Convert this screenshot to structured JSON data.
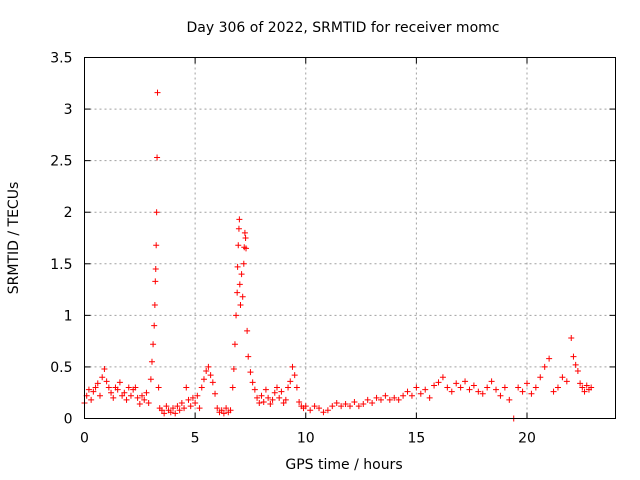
{
  "chart_data": {
    "type": "scatter",
    "title": "Day 306 of 2022, SRMTID for receiver momc",
    "xlabel": "GPS time / hours",
    "ylabel": "SRMTID / TECUs",
    "xlim": [
      0,
      24
    ],
    "ylim": [
      0,
      3.5
    ],
    "xticks": [
      0,
      5,
      10,
      15,
      20
    ],
    "xtick_labels": [
      "0",
      "5",
      "10",
      "15",
      "20"
    ],
    "yticks": [
      0,
      0.5,
      1,
      1.5,
      2,
      2.5,
      3,
      3.5
    ],
    "ytick_labels": [
      "0",
      "0.5",
      "1",
      "1.5",
      "2",
      "2.5",
      "3",
      "3.5"
    ],
    "grid": true,
    "marker": "+",
    "color": "#ff0000",
    "series": [
      {
        "name": "SRMTID",
        "points": [
          [
            0.0,
            0.15
          ],
          [
            0.1,
            0.22
          ],
          [
            0.2,
            0.28
          ],
          [
            0.3,
            0.18
          ],
          [
            0.4,
            0.26
          ],
          [
            0.5,
            0.3
          ],
          [
            0.6,
            0.34
          ],
          [
            0.7,
            0.22
          ],
          [
            0.8,
            0.4
          ],
          [
            0.9,
            0.48
          ],
          [
            1.0,
            0.36
          ],
          [
            1.1,
            0.3
          ],
          [
            1.2,
            0.25
          ],
          [
            1.3,
            0.2
          ],
          [
            1.4,
            0.3
          ],
          [
            1.5,
            0.28
          ],
          [
            1.6,
            0.35
          ],
          [
            1.7,
            0.22
          ],
          [
            1.8,
            0.25
          ],
          [
            1.9,
            0.18
          ],
          [
            2.0,
            0.3
          ],
          [
            2.1,
            0.22
          ],
          [
            2.2,
            0.28
          ],
          [
            2.3,
            0.3
          ],
          [
            2.4,
            0.2
          ],
          [
            2.5,
            0.14
          ],
          [
            2.6,
            0.22
          ],
          [
            2.7,
            0.18
          ],
          [
            2.8,
            0.25
          ],
          [
            2.9,
            0.15
          ],
          [
            3.0,
            0.38
          ],
          [
            3.05,
            0.55
          ],
          [
            3.1,
            0.72
          ],
          [
            3.15,
            0.9
          ],
          [
            3.18,
            1.1
          ],
          [
            3.2,
            1.33
          ],
          [
            3.22,
            1.45
          ],
          [
            3.24,
            1.68
          ],
          [
            3.26,
            2.0
          ],
          [
            3.28,
            2.53
          ],
          [
            3.3,
            3.16
          ],
          [
            3.35,
            0.3
          ],
          [
            3.4,
            0.1
          ],
          [
            3.5,
            0.08
          ],
          [
            3.6,
            0.05
          ],
          [
            3.7,
            0.12
          ],
          [
            3.8,
            0.08
          ],
          [
            3.9,
            0.06
          ],
          [
            4.0,
            0.1
          ],
          [
            4.1,
            0.05
          ],
          [
            4.2,
            0.12
          ],
          [
            4.3,
            0.08
          ],
          [
            4.4,
            0.15
          ],
          [
            4.5,
            0.1
          ],
          [
            4.6,
            0.3
          ],
          [
            4.7,
            0.18
          ],
          [
            4.8,
            0.12
          ],
          [
            4.9,
            0.2
          ],
          [
            5.0,
            0.15
          ],
          [
            5.1,
            0.22
          ],
          [
            5.2,
            0.1
          ],
          [
            5.3,
            0.3
          ],
          [
            5.4,
            0.38
          ],
          [
            5.5,
            0.46
          ],
          [
            5.6,
            0.5
          ],
          [
            5.7,
            0.42
          ],
          [
            5.8,
            0.35
          ],
          [
            5.9,
            0.24
          ],
          [
            6.0,
            0.1
          ],
          [
            6.1,
            0.06
          ],
          [
            6.2,
            0.08
          ],
          [
            6.3,
            0.05
          ],
          [
            6.4,
            0.1
          ],
          [
            6.5,
            0.06
          ],
          [
            6.6,
            0.08
          ],
          [
            6.7,
            0.3
          ],
          [
            6.75,
            0.48
          ],
          [
            6.8,
            0.72
          ],
          [
            6.85,
            1.0
          ],
          [
            6.9,
            1.22
          ],
          [
            6.92,
            1.47
          ],
          [
            6.95,
            1.68
          ],
          [
            6.98,
            1.84
          ],
          [
            7.0,
            1.93
          ],
          [
            7.02,
            1.3
          ],
          [
            7.05,
            1.1
          ],
          [
            7.1,
            1.4
          ],
          [
            7.15,
            1.18
          ],
          [
            7.2,
            1.5
          ],
          [
            7.22,
            1.66
          ],
          [
            7.25,
            1.8
          ],
          [
            7.28,
            1.75
          ],
          [
            7.3,
            1.65
          ],
          [
            7.35,
            0.85
          ],
          [
            7.4,
            0.6
          ],
          [
            7.5,
            0.45
          ],
          [
            7.6,
            0.35
          ],
          [
            7.7,
            0.28
          ],
          [
            7.8,
            0.2
          ],
          [
            7.9,
            0.15
          ],
          [
            8.0,
            0.22
          ],
          [
            8.1,
            0.16
          ],
          [
            8.2,
            0.28
          ],
          [
            8.3,
            0.2
          ],
          [
            8.4,
            0.14
          ],
          [
            8.5,
            0.18
          ],
          [
            8.6,
            0.25
          ],
          [
            8.7,
            0.3
          ],
          [
            8.8,
            0.2
          ],
          [
            8.9,
            0.26
          ],
          [
            9.0,
            0.15
          ],
          [
            9.1,
            0.18
          ],
          [
            9.2,
            0.3
          ],
          [
            9.3,
            0.36
          ],
          [
            9.4,
            0.5
          ],
          [
            9.5,
            0.42
          ],
          [
            9.6,
            0.3
          ],
          [
            9.7,
            0.16
          ],
          [
            9.8,
            0.12
          ],
          [
            9.9,
            0.1
          ],
          [
            10.0,
            0.12
          ],
          [
            10.2,
            0.08
          ],
          [
            10.4,
            0.12
          ],
          [
            10.6,
            0.1
          ],
          [
            10.8,
            0.06
          ],
          [
            11.0,
            0.08
          ],
          [
            11.2,
            0.12
          ],
          [
            11.4,
            0.15
          ],
          [
            11.6,
            0.12
          ],
          [
            11.8,
            0.14
          ],
          [
            12.0,
            0.12
          ],
          [
            12.2,
            0.16
          ],
          [
            12.4,
            0.12
          ],
          [
            12.6,
            0.14
          ],
          [
            12.8,
            0.18
          ],
          [
            13.0,
            0.15
          ],
          [
            13.2,
            0.2
          ],
          [
            13.4,
            0.18
          ],
          [
            13.6,
            0.22
          ],
          [
            13.8,
            0.18
          ],
          [
            14.0,
            0.2
          ],
          [
            14.2,
            0.18
          ],
          [
            14.4,
            0.22
          ],
          [
            14.6,
            0.26
          ],
          [
            14.8,
            0.22
          ],
          [
            15.0,
            0.3
          ],
          [
            15.2,
            0.24
          ],
          [
            15.4,
            0.28
          ],
          [
            15.6,
            0.2
          ],
          [
            15.8,
            0.32
          ],
          [
            16.0,
            0.35
          ],
          [
            16.2,
            0.4
          ],
          [
            16.4,
            0.3
          ],
          [
            16.6,
            0.26
          ],
          [
            16.8,
            0.34
          ],
          [
            17.0,
            0.3
          ],
          [
            17.2,
            0.36
          ],
          [
            17.4,
            0.28
          ],
          [
            17.6,
            0.32
          ],
          [
            17.8,
            0.26
          ],
          [
            18.0,
            0.24
          ],
          [
            18.2,
            0.3
          ],
          [
            18.4,
            0.36
          ],
          [
            18.6,
            0.28
          ],
          [
            18.8,
            0.22
          ],
          [
            19.0,
            0.3
          ],
          [
            19.2,
            0.18
          ],
          [
            19.4,
            0.0
          ],
          [
            19.6,
            0.3
          ],
          [
            19.8,
            0.26
          ],
          [
            20.0,
            0.34
          ],
          [
            20.2,
            0.24
          ],
          [
            20.4,
            0.3
          ],
          [
            20.6,
            0.4
          ],
          [
            20.8,
            0.5
          ],
          [
            21.0,
            0.58
          ],
          [
            21.2,
            0.26
          ],
          [
            21.4,
            0.3
          ],
          [
            21.6,
            0.4
          ],
          [
            21.8,
            0.36
          ],
          [
            22.0,
            0.78
          ],
          [
            22.1,
            0.6
          ],
          [
            22.2,
            0.52
          ],
          [
            22.3,
            0.46
          ],
          [
            22.4,
            0.34
          ],
          [
            22.5,
            0.3
          ],
          [
            22.6,
            0.26
          ],
          [
            22.7,
            0.32
          ],
          [
            22.8,
            0.28
          ],
          [
            22.9,
            0.3
          ]
        ]
      }
    ]
  }
}
